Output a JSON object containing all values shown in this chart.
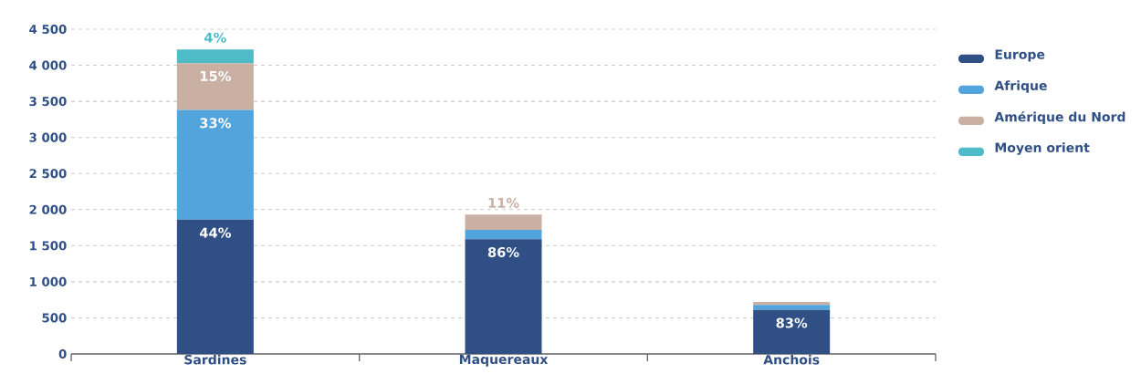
{
  "chart_data": {
    "type": "bar",
    "stacked": true,
    "categories": [
      "Sardines",
      "Maquereaux",
      "Anchois"
    ],
    "series": [
      {
        "name": "Europe",
        "color": "#2f4f85",
        "values": [
          1860,
          1590,
          610
        ]
      },
      {
        "name": "Afrique",
        "color": "#52a5dc",
        "values": [
          1520,
          130,
          70
        ]
      },
      {
        "name": "Amérique du Nord",
        "color": "#c9b0a3",
        "values": [
          650,
          210,
          40
        ]
      },
      {
        "name": "Moyen orient",
        "color": "#4dbcc8",
        "values": [
          190,
          0,
          0
        ]
      }
    ],
    "annotations": [
      {
        "text": "44%",
        "x": "Sardines",
        "y": 1860
      },
      {
        "text": "33%",
        "x": "Sardines",
        "y": 3380
      },
      {
        "text": "15%",
        "x": "Sardines",
        "y": 4030
      },
      {
        "text": "4%",
        "x": "Sardines",
        "y": 4220
      },
      {
        "text": "86%",
        "x": "Maquereaux",
        "y": 1590
      },
      {
        "text": "11%",
        "x": "Maquereaux",
        "y": 1930
      },
      {
        "text": "83%",
        "x": "Anchois",
        "y": 610
      }
    ],
    "ylim": [
      0,
      4500
    ],
    "yticks": [
      0,
      500,
      {
        "value": 1000,
        "label": "1 000"
      },
      {
        "value": 1500,
        "label": "1 500"
      },
      {
        "value": 2000,
        "label": "2 000"
      },
      {
        "value": 2500,
        "label": "2 500"
      },
      {
        "value": 3000,
        "label": "3 000"
      },
      {
        "value": 3500,
        "label": "3 500"
      },
      {
        "value": 4000,
        "label": "4 000"
      },
      {
        "value": 4500,
        "label": "4 500"
      }
    ],
    "grid": "y",
    "legend": "right"
  }
}
